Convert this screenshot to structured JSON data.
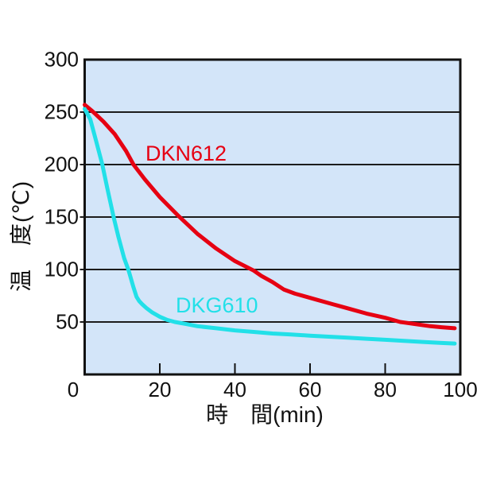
{
  "figure": {
    "y_axis_title": "温　度(℃)",
    "x_axis_title": "時　間(min)",
    "origin_label": "0"
  },
  "colors": {
    "plot_background": "#d3e5f9",
    "axis_line": "#111111",
    "gridline": "#1c1c1c",
    "series_dkn612": "#e60012",
    "series_dkg610": "#22e0e8",
    "text": "#111111",
    "page_background": "#ffffff"
  },
  "chart_data": {
    "type": "line",
    "title": "",
    "xlabel": "時　間(min)",
    "ylabel": "温　度(℃)",
    "xlim": [
      0,
      100
    ],
    "ylim": [
      0,
      300
    ],
    "x_ticks": [
      0,
      20,
      40,
      60,
      80,
      100
    ],
    "y_ticks": [
      50,
      100,
      150,
      200,
      250,
      300
    ],
    "grid": "horizontal-only",
    "legend_position": "inline-labels-on-plot",
    "series": [
      {
        "name": "DKN612",
        "color": "#e60012",
        "points": [
          [
            0,
            257
          ],
          [
            2,
            251
          ],
          [
            5,
            241
          ],
          [
            8,
            229
          ],
          [
            11,
            213
          ],
          [
            13,
            200
          ],
          [
            16,
            186
          ],
          [
            20,
            169
          ],
          [
            25,
            151
          ],
          [
            30,
            134
          ],
          [
            35,
            120
          ],
          [
            40,
            108
          ],
          [
            45,
            99
          ],
          [
            47,
            94
          ],
          [
            50,
            88
          ],
          [
            53,
            81
          ],
          [
            56,
            77
          ],
          [
            59,
            74
          ],
          [
            62,
            71
          ],
          [
            66,
            67
          ],
          [
            70,
            63
          ],
          [
            75,
            58
          ],
          [
            80,
            54
          ],
          [
            84,
            50
          ],
          [
            88,
            48
          ],
          [
            92,
            46
          ],
          [
            95,
            45
          ],
          [
            98.5,
            44
          ]
        ]
      },
      {
        "name": "DKG610",
        "color": "#22e0e8",
        "points": [
          [
            0,
            253
          ],
          [
            1.5,
            243
          ],
          [
            3,
            223
          ],
          [
            4.7,
            200
          ],
          [
            6,
            178
          ],
          [
            7.7,
            150
          ],
          [
            9,
            131
          ],
          [
            10.5,
            111
          ],
          [
            11.7,
            99
          ],
          [
            13,
            83
          ],
          [
            13.8,
            74
          ],
          [
            14.5,
            70
          ],
          [
            15.3,
            67
          ],
          [
            16.5,
            63
          ],
          [
            18,
            59
          ],
          [
            20,
            55
          ],
          [
            22,
            52
          ],
          [
            24,
            50
          ],
          [
            27,
            48
          ],
          [
            30,
            46
          ],
          [
            35,
            44
          ],
          [
            40,
            42
          ],
          [
            45,
            40.5
          ],
          [
            50,
            39
          ],
          [
            55,
            38
          ],
          [
            60,
            37
          ],
          [
            65,
            36
          ],
          [
            70,
            35
          ],
          [
            75,
            34
          ],
          [
            80,
            33
          ],
          [
            85,
            32
          ],
          [
            90,
            31
          ],
          [
            95,
            30
          ],
          [
            98.5,
            29.5
          ]
        ]
      }
    ]
  }
}
